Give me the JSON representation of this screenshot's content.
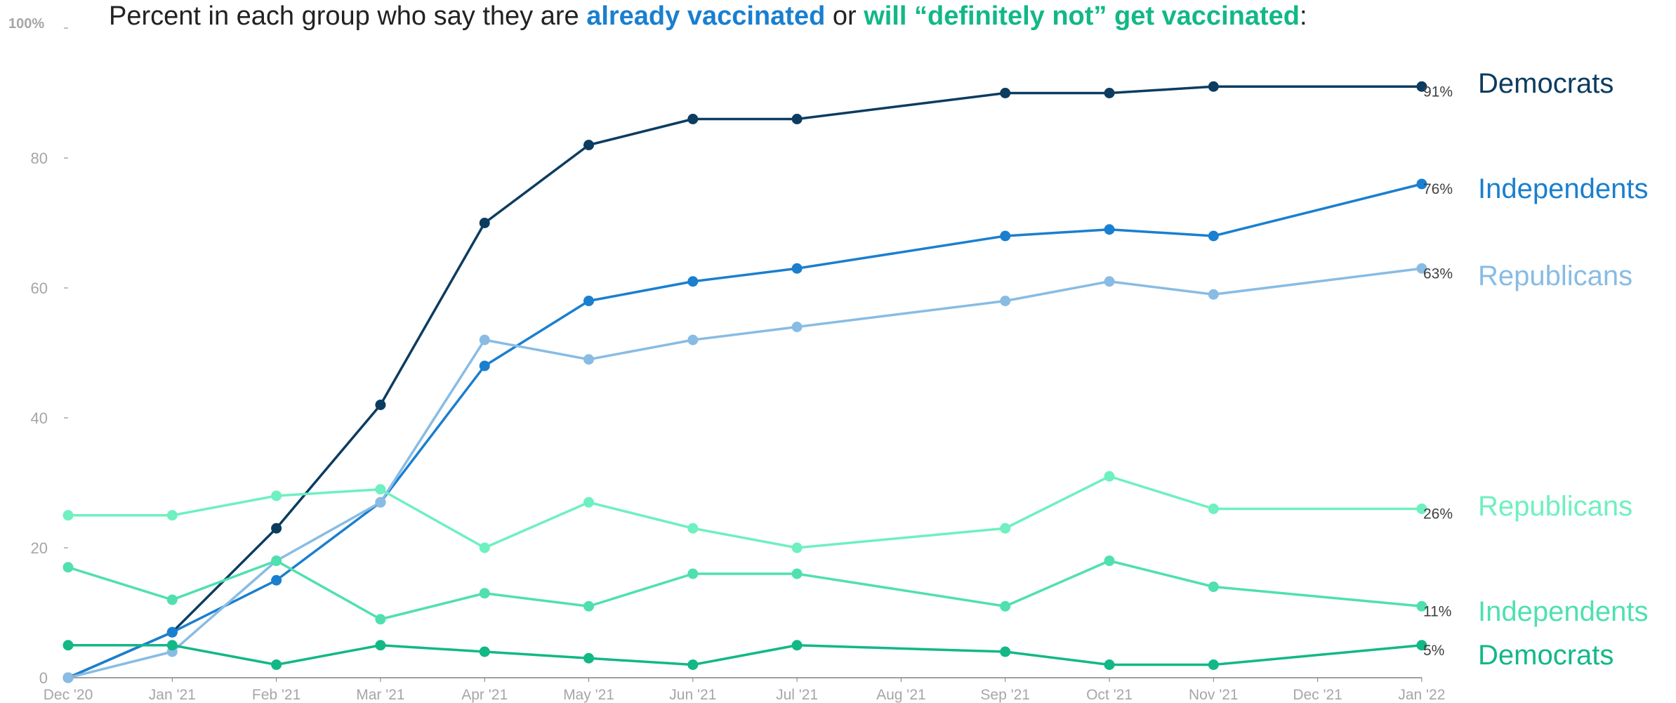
{
  "title": {
    "prefix": "Percent in each group who say they are ",
    "highlight1": "already vaccinated",
    "middle": " or ",
    "highlight2": "will “definitely not” get vaccinated",
    "suffix": ":"
  },
  "colors": {
    "title_blue": "#1a7fcf",
    "title_green": "#12b886",
    "axis_text": "#a6a6a6",
    "axis_line": "#808080",
    "end_label": "#404040"
  },
  "chart_data": {
    "type": "line",
    "x": [
      "Dec '20",
      "Jan '21",
      "Feb '21",
      "Mar '21",
      "Apr '21",
      "May '21",
      "Jun '21",
      "Jul '21",
      "Sep '21",
      "Oct '21",
      "Nov '21",
      "Jan '22"
    ],
    "x_ticks": [
      "Dec '20",
      "Jan '21",
      "Feb '21",
      "Mar '21",
      "Apr '21",
      "May '21",
      "Jun '21",
      "Jul '21",
      "Aug '21",
      "Sep '21",
      "Oct '21",
      "Nov '21",
      "Dec '21",
      "Jan '22"
    ],
    "y_ticks": [
      "100%",
      "80",
      "60",
      "40",
      "20",
      "0"
    ],
    "ylim": [
      0,
      100
    ],
    "grid": false,
    "series": [
      {
        "name": "Democrats",
        "group": "already vaccinated",
        "color": "#0c3c60",
        "values": [
          0,
          7,
          23,
          42,
          70,
          82,
          86,
          86,
          90,
          90,
          91,
          91
        ],
        "end_label": "91%"
      },
      {
        "name": "Independents",
        "group": "already vaccinated",
        "color": "#1a7fcf",
        "values": [
          0,
          7,
          15,
          27,
          48,
          58,
          61,
          63,
          68,
          69,
          68,
          76
        ],
        "end_label": "76%"
      },
      {
        "name": "Republicans",
        "group": "already vaccinated",
        "color": "#88bce4",
        "values": [
          0,
          4,
          18,
          27,
          52,
          49,
          52,
          54,
          58,
          61,
          59,
          63
        ],
        "end_label": "63%"
      },
      {
        "name": "Republicans",
        "group": "will definitely not get vaccinated",
        "color": "#6ef0c0",
        "values": [
          25,
          25,
          28,
          29,
          20,
          27,
          23,
          20,
          23,
          31,
          26,
          26
        ],
        "end_label": "26%"
      },
      {
        "name": "Independents",
        "group": "will definitely not get vaccinated",
        "color": "#4fe0ae",
        "values": [
          17,
          12,
          18,
          9,
          13,
          11,
          16,
          16,
          11,
          18,
          14,
          11
        ],
        "end_label": "11%"
      },
      {
        "name": "Democrats",
        "group": "will definitely not get vaccinated",
        "color": "#12b886",
        "values": [
          5,
          5,
          2,
          5,
          4,
          3,
          2,
          5,
          4,
          2,
          2,
          5
        ],
        "end_label": "5%"
      }
    ]
  }
}
